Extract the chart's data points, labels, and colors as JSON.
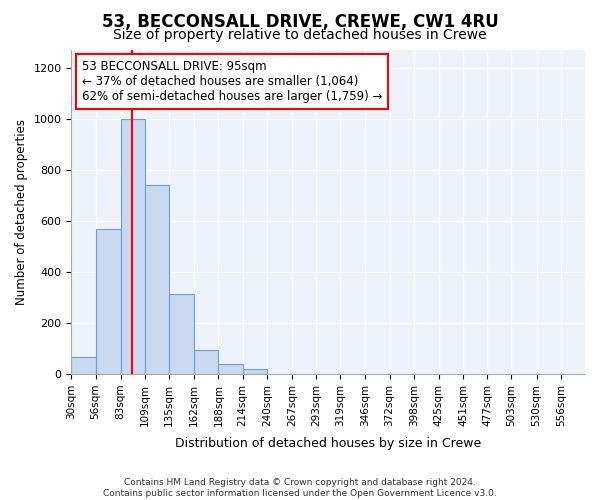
{
  "title": "53, BECCONSALL DRIVE, CREWE, CW1 4RU",
  "subtitle": "Size of property relative to detached houses in Crewe",
  "xlabel": "Distribution of detached houses by size in Crewe",
  "ylabel": "Number of detached properties",
  "bin_labels": [
    "30sqm",
    "56sqm",
    "83sqm",
    "109sqm",
    "135sqm",
    "162sqm",
    "188sqm",
    "214sqm",
    "240sqm",
    "267sqm",
    "293sqm",
    "319sqm",
    "346sqm",
    "372sqm",
    "398sqm",
    "425sqm",
    "451sqm",
    "477sqm",
    "503sqm",
    "530sqm",
    "556sqm"
  ],
  "bin_edges": [
    30,
    56,
    83,
    109,
    135,
    162,
    188,
    214,
    240,
    267,
    293,
    319,
    346,
    372,
    398,
    425,
    451,
    477,
    503,
    530,
    556,
    582
  ],
  "values": [
    65,
    570,
    1000,
    740,
    315,
    95,
    40,
    20,
    0,
    0,
    0,
    0,
    0,
    0,
    0,
    0,
    0,
    0,
    0,
    0,
    0
  ],
  "bar_color": "#c9d9f0",
  "bar_edge_color": "#6a9fd8",
  "red_line_x": 95,
  "annotation_text": "53 BECCONSALL DRIVE: 95sqm\n← 37% of detached houses are smaller (1,064)\n62% of semi-detached houses are larger (1,759) →",
  "annotation_box_color": "white",
  "annotation_box_edge": "red",
  "footer": "Contains HM Land Registry data © Crown copyright and database right 2024.\nContains public sector information licensed under the Open Government Licence v3.0.",
  "ylim": [
    0,
    1270
  ],
  "yticks": [
    0,
    200,
    400,
    600,
    800,
    1000,
    1200
  ],
  "background_color": "#eef2fb",
  "title_fontsize": 12,
  "subtitle_fontsize": 10,
  "grid_color": "#ffffff"
}
